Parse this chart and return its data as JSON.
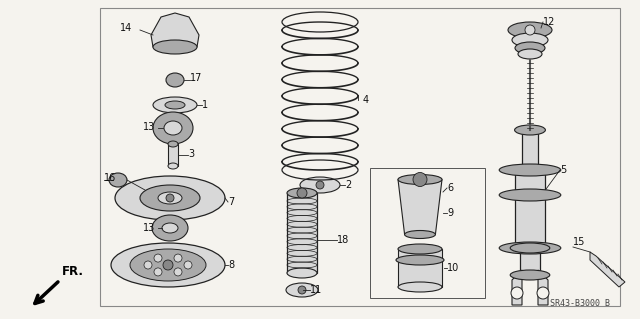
{
  "bg_color": "#f5f3ee",
  "border_color": "#666666",
  "diagram_code": "SR43-B3000 B",
  "fr_label": "FR.",
  "line_color": "#222222",
  "text_color": "#111111",
  "font_size": 7.0,
  "gray_light": "#d8d8d8",
  "gray_mid": "#aaaaaa",
  "gray_dark": "#888888",
  "white": "#ffffff"
}
